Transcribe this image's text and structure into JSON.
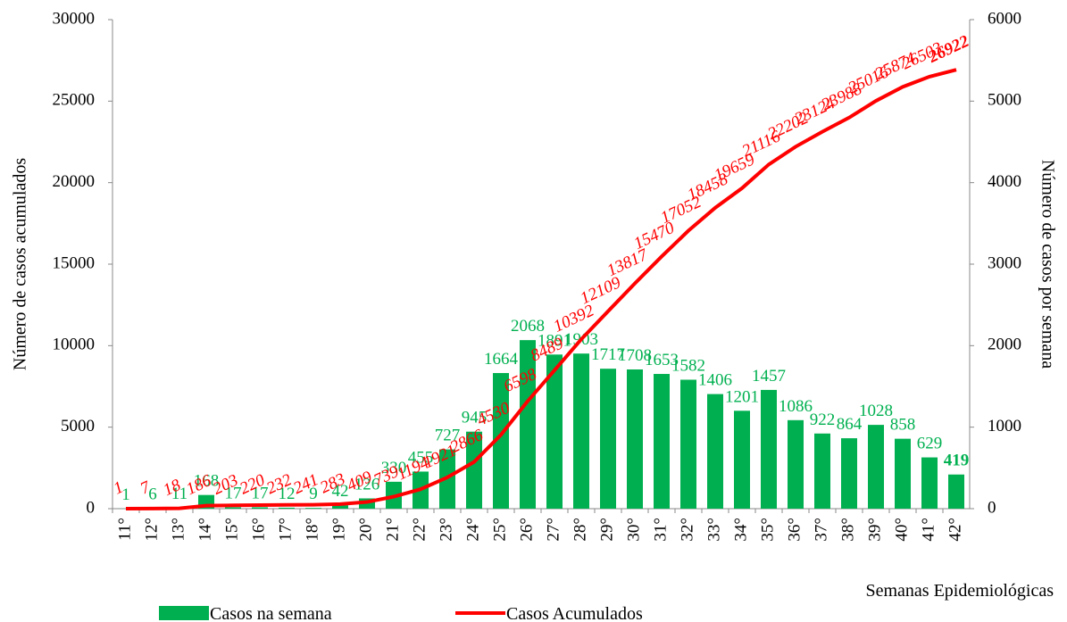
{
  "chart_data": {
    "type": "bar_line",
    "categories": [
      "11°",
      "12°",
      "13°",
      "14°",
      "15°",
      "16°",
      "17°",
      "18°",
      "19°",
      "20°",
      "21°",
      "22°",
      "23°",
      "24°",
      "25°",
      "26°",
      "27°",
      "28°",
      "29°",
      "30°",
      "31°",
      "32°",
      "33°",
      "34°",
      "35°",
      "36°",
      "37°",
      "38°",
      "39°",
      "40°",
      "41°",
      "42°"
    ],
    "series": [
      {
        "name": "Casos na semana",
        "type": "bar",
        "axis": "y2",
        "color": "#00b050",
        "values": [
          1,
          6,
          11,
          168,
          17,
          17,
          12,
          9,
          42,
          126,
          330,
          455,
          727,
          945,
          1664,
          2068,
          1891,
          1903,
          1717,
          1708,
          1653,
          1582,
          1406,
          1201,
          1457,
          1086,
          922,
          864,
          1028,
          858,
          629,
          419
        ]
      },
      {
        "name": "Casos Acumulados",
        "type": "line",
        "axis": "y",
        "color": "#ff0000",
        "values": [
          1,
          7,
          18,
          186,
          203,
          220,
          232,
          241,
          283,
          409,
          739,
          1194,
          1921,
          2866,
          4530,
          6598,
          8489,
          10392,
          12109,
          13817,
          15470,
          17052,
          18458,
          19659,
          21116,
          22202,
          23124,
          23988,
          25016,
          25874,
          26503,
          26922
        ]
      }
    ],
    "xlabel": "Semanas Epidemiológicas",
    "ylabel": "Número de casos acumulados",
    "y2label": "Número de  casos por semana",
    "ylim": [
      0,
      30000
    ],
    "yticks": [
      0,
      5000,
      10000,
      15000,
      20000,
      25000,
      30000
    ],
    "y2lim": [
      0,
      6000
    ],
    "y2ticks": [
      0,
      1000,
      2000,
      3000,
      4000,
      5000,
      6000
    ],
    "legend": "bottom"
  }
}
